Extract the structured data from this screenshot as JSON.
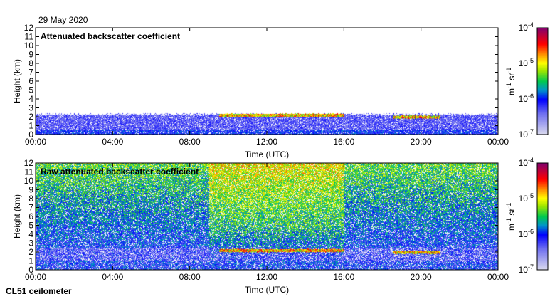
{
  "header": {
    "date": "29 May 2020",
    "instrument": "CL51 ceilometer"
  },
  "chart_data": [
    {
      "type": "heatmap",
      "title": "Attenuated backscatter coefficient",
      "xlabel": "Time (UTC)",
      "ylabel": "Height (km)",
      "xticks": [
        "00:00",
        "04:00",
        "08:00",
        "12:00",
        "16:00",
        "20:00",
        "00:00"
      ],
      "yticks": [
        "0",
        "1",
        "2",
        "3",
        "4",
        "5",
        "6",
        "7",
        "8",
        "9",
        "10",
        "11",
        "12"
      ],
      "xlim": [
        0,
        24
      ],
      "ylim": [
        0,
        12
      ],
      "colorbar": {
        "label_base": "m",
        "label_exp1": "-1",
        "label_mid": " sr",
        "label_exp2": "-1",
        "ticks": [
          {
            "base": "10",
            "exp": "-4"
          },
          {
            "base": "10",
            "exp": "-5"
          },
          {
            "base": "10",
            "exp": "-6"
          },
          {
            "base": "10",
            "exp": "-7"
          }
        ],
        "range": [
          1e-07,
          0.0001
        ],
        "scale": "log"
      },
      "features": {
        "boundary_layer_top_km": 2.3,
        "cloud_layers": [
          {
            "start_h": 9.5,
            "end_h": 16,
            "height_km": 2.2
          },
          {
            "start_h": 18.5,
            "end_h": 21,
            "height_km": 2.0
          }
        ]
      }
    },
    {
      "type": "heatmap",
      "title": "Raw attenuated backscatter coefficient",
      "xlabel": "Time (UTC)",
      "ylabel": "Height (km)",
      "xticks": [
        "00:00",
        "04:00",
        "08:00",
        "12:00",
        "16:00",
        "20:00",
        "00:00"
      ],
      "yticks": [
        "0",
        "1",
        "2",
        "3",
        "4",
        "5",
        "6",
        "7",
        "8",
        "9",
        "10",
        "11",
        "12"
      ],
      "xlim": [
        0,
        24
      ],
      "ylim": [
        0,
        12
      ],
      "colorbar": {
        "label_base": "m",
        "label_exp1": "-1",
        "label_mid": " sr",
        "label_exp2": "-1",
        "ticks": [
          {
            "base": "10",
            "exp": "-4"
          },
          {
            "base": "10",
            "exp": "-5"
          },
          {
            "base": "10",
            "exp": "-6"
          },
          {
            "base": "10",
            "exp": "-7"
          }
        ],
        "range": [
          1e-07,
          0.0001
        ],
        "scale": "log"
      },
      "features": {
        "high_noise_period": [
          9,
          16
        ],
        "cloud_layers": [
          {
            "start_h": 9.5,
            "end_h": 16,
            "height_km": 2.2
          },
          {
            "start_h": 18.5,
            "end_h": 21,
            "height_km": 2.0
          }
        ]
      }
    }
  ]
}
